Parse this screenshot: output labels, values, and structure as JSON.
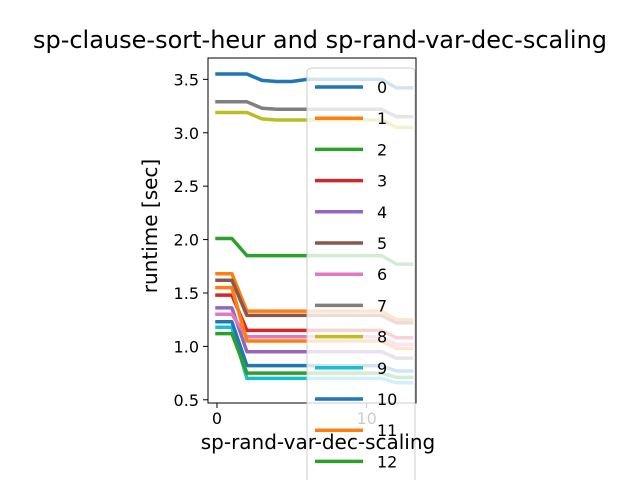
{
  "chart_data": {
    "type": "line",
    "title": "sp-clause-sort-heur and sp-rand-var-dec-scaling",
    "xlabel": "sp-rand-var-dec-scaling",
    "ylabel": "runtime [sec]",
    "xlim": [
      -0.6,
      13.3
    ],
    "ylim": [
      0.47,
      3.7
    ],
    "xticks": [
      0,
      10
    ],
    "yticks": [
      0.5,
      1.0,
      1.5,
      2.0,
      2.5,
      3.0,
      3.5
    ],
    "x": [
      0,
      1,
      2,
      3,
      4,
      5,
      6,
      7,
      8,
      9,
      10,
      11,
      12,
      13
    ],
    "legend_location": "right, overlapping plot",
    "series": [
      {
        "name": "0",
        "color": "#1f77b4",
        "values": [
          3.55,
          3.55,
          3.55,
          3.49,
          3.48,
          3.48,
          3.5,
          3.5,
          3.5,
          3.5,
          3.5,
          3.5,
          3.42,
          3.42
        ]
      },
      {
        "name": "1",
        "color": "#ff7f0e",
        "values": [
          1.68,
          1.68,
          1.33,
          1.33,
          1.33,
          1.33,
          1.33,
          1.33,
          1.33,
          1.33,
          1.33,
          1.33,
          1.25,
          1.25
        ]
      },
      {
        "name": "2",
        "color": "#2ca02c",
        "values": [
          2.01,
          2.01,
          1.85,
          1.85,
          1.85,
          1.85,
          1.85,
          1.85,
          1.85,
          1.85,
          1.85,
          1.85,
          1.77,
          1.77
        ]
      },
      {
        "name": "3",
        "color": "#d62728",
        "values": [
          1.48,
          1.48,
          1.15,
          1.15,
          1.15,
          1.15,
          1.15,
          1.15,
          1.15,
          1.15,
          1.15,
          1.15,
          1.08,
          1.08
        ]
      },
      {
        "name": "4",
        "color": "#9467bd",
        "values": [
          1.36,
          1.36,
          0.95,
          0.95,
          0.95,
          0.95,
          0.95,
          0.95,
          0.95,
          0.95,
          0.95,
          0.95,
          0.89,
          0.89
        ]
      },
      {
        "name": "5",
        "color": "#8c564b",
        "values": [
          1.62,
          1.62,
          1.29,
          1.29,
          1.29,
          1.29,
          1.29,
          1.29,
          1.29,
          1.29,
          1.29,
          1.29,
          1.22,
          1.22
        ]
      },
      {
        "name": "6",
        "color": "#e377c2",
        "values": [
          1.3,
          1.3,
          1.09,
          1.09,
          1.09,
          1.09,
          1.09,
          1.09,
          1.09,
          1.09,
          1.09,
          1.09,
          1.02,
          1.02
        ]
      },
      {
        "name": "7",
        "color": "#7f7f7f",
        "values": [
          3.29,
          3.29,
          3.29,
          3.23,
          3.22,
          3.22,
          3.22,
          3.22,
          3.22,
          3.22,
          3.22,
          3.22,
          3.15,
          3.15
        ]
      },
      {
        "name": "8",
        "color": "#bcbd22",
        "values": [
          3.19,
          3.19,
          3.19,
          3.13,
          3.12,
          3.12,
          3.12,
          3.12,
          3.12,
          3.12,
          3.12,
          3.12,
          3.05,
          3.05
        ]
      },
      {
        "name": "9",
        "color": "#17becf",
        "values": [
          1.18,
          1.18,
          0.7,
          0.7,
          0.7,
          0.7,
          0.7,
          0.7,
          0.7,
          0.7,
          0.7,
          0.7,
          0.66,
          0.66
        ]
      },
      {
        "name": "10",
        "color": "#1f77b4",
        "values": [
          1.23,
          1.23,
          0.82,
          0.82,
          0.82,
          0.82,
          0.82,
          0.82,
          0.82,
          0.82,
          0.82,
          0.82,
          0.77,
          0.77
        ]
      },
      {
        "name": "11",
        "color": "#ff7f0e",
        "values": [
          1.55,
          1.55,
          1.05,
          1.05,
          1.05,
          1.05,
          1.05,
          1.05,
          1.05,
          1.05,
          1.05,
          1.05,
          0.98,
          0.98
        ]
      },
      {
        "name": "12",
        "color": "#2ca02c",
        "values": [
          1.12,
          1.12,
          0.75,
          0.75,
          0.75,
          0.75,
          0.75,
          0.75,
          0.75,
          0.75,
          0.75,
          0.75,
          0.71,
          0.71
        ]
      }
    ]
  }
}
